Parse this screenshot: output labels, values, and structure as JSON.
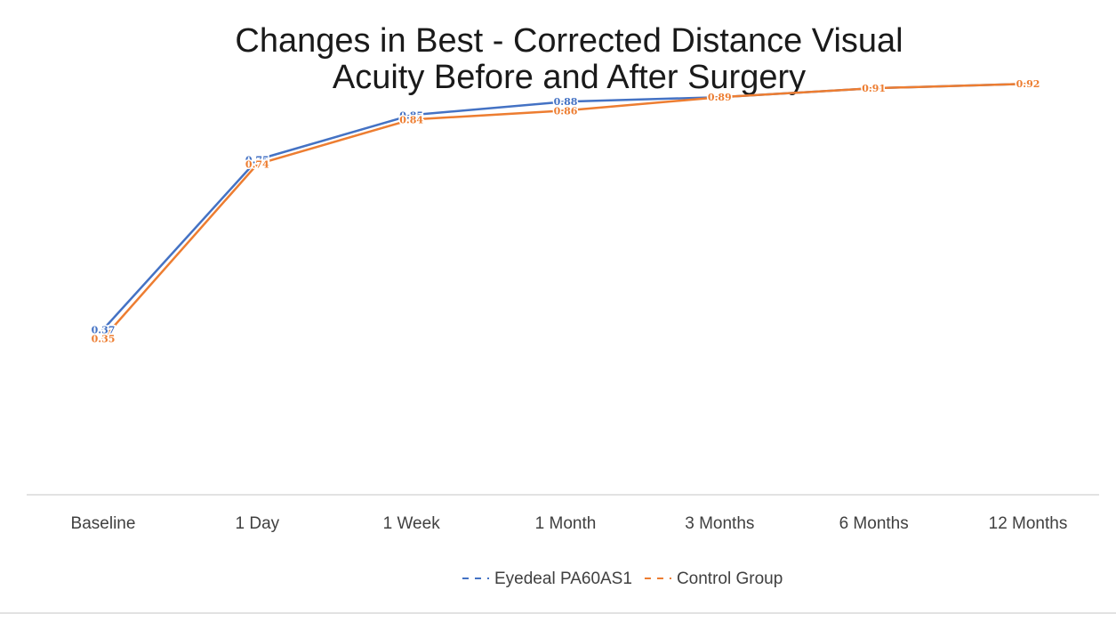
{
  "chart_data": {
    "type": "line",
    "title": "Changes in Best - Corrected Distance Visual Acuity Before and After Surgery",
    "title_lines": [
      "Changes in Best - Corrected Distance Visual",
      "Acuity Before and After Surgery"
    ],
    "categories": [
      "Baseline",
      "1 Day",
      "1 Week",
      "1 Month",
      "3 Months",
      "6 Months",
      "12 Months"
    ],
    "series": [
      {
        "name": "Eyedeal PA60AS1",
        "color": "#4472c4",
        "values": [
          0.37,
          0.75,
          0.85,
          0.88,
          0.89,
          0.91,
          0.92
        ],
        "labels": [
          "0.37",
          "0.75",
          "0.85",
          "0.88",
          "0.89",
          "0.91",
          "0.92"
        ]
      },
      {
        "name": "Control Group",
        "color": "#ed7d31",
        "values": [
          0.35,
          0.74,
          0.84,
          0.86,
          0.89,
          0.91,
          0.92
        ],
        "labels": [
          "0.35",
          "0.74",
          "0.84",
          "0.86",
          "0.89",
          "0.91",
          "0.92"
        ]
      }
    ],
    "xlabel": "",
    "ylabel": "",
    "ylim": [
      0,
      1
    ],
    "grid": false,
    "legend_position": "bottom"
  }
}
